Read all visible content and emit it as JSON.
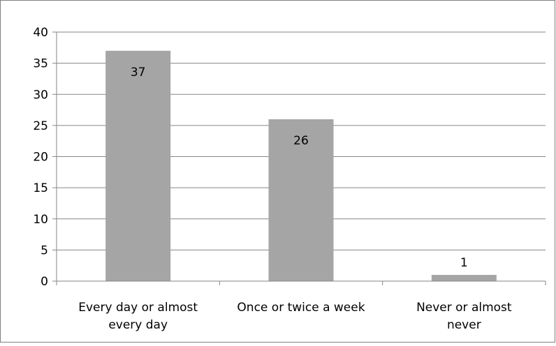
{
  "chart_data": {
    "type": "bar",
    "title": "",
    "xlabel": "",
    "ylabel": "",
    "categories": [
      [
        "Every day or almost",
        "every day"
      ],
      [
        "Once or twice a week"
      ],
      [
        "Never or almost",
        "never"
      ]
    ],
    "values": [
      37,
      26,
      1
    ],
    "data_labels": [
      "37",
      "26",
      "1"
    ],
    "ylim": [
      0,
      40
    ],
    "yticks": [
      0,
      5,
      10,
      15,
      20,
      25,
      30,
      35,
      40
    ],
    "grid": true,
    "legend": "none",
    "colors": {
      "bar": "#a5a5a5",
      "gridline": "#868686",
      "axis": "#868686",
      "border": "#7f7f7f"
    }
  }
}
